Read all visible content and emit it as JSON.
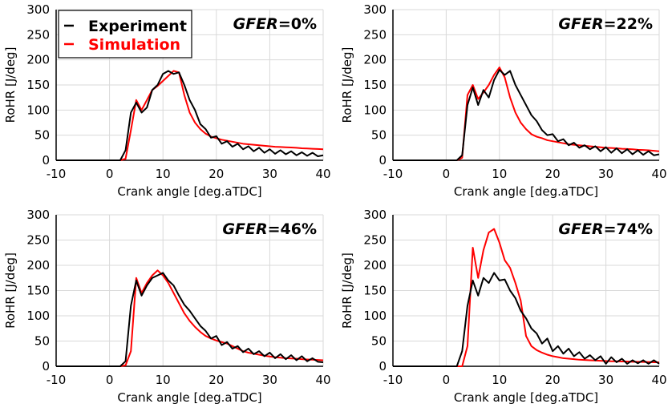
{
  "legend": {
    "items": [
      {
        "label": "Experiment",
        "color": "#000000"
      },
      {
        "label": "Simulation",
        "color": "#ff0000"
      }
    ],
    "placement": "top-left of first panel"
  },
  "chart_data": [
    {
      "type": "line",
      "annotation_var": "GFER",
      "annotation_value": "=0%",
      "xlabel": "Crank angle [deg.aTDC]",
      "ylabel": "RoHR [J/deg]",
      "xlim": [
        -10,
        40
      ],
      "ylim": [
        0,
        300
      ],
      "grid": true,
      "xticks": [
        "-10",
        "0",
        "10",
        "20",
        "30",
        "40"
      ],
      "yticks": [
        "0",
        "50",
        "100",
        "150",
        "200",
        "250",
        "300"
      ],
      "x": [
        -10,
        2,
        3,
        4,
        5,
        6,
        7,
        8,
        9,
        10,
        11,
        12,
        13,
        14,
        15,
        16,
        17,
        18,
        19,
        20,
        21,
        22,
        23,
        24,
        25,
        26,
        27,
        28,
        29,
        30,
        31,
        32,
        33,
        34,
        35,
        36,
        37,
        38,
        39,
        40
      ],
      "series": [
        {
          "name": "Experiment",
          "values": [
            0,
            0,
            20,
            95,
            115,
            95,
            105,
            140,
            150,
            172,
            178,
            172,
            175,
            150,
            120,
            100,
            72,
            62,
            45,
            48,
            33,
            38,
            27,
            33,
            22,
            28,
            18,
            25,
            15,
            22,
            13,
            20,
            12,
            18,
            10,
            16,
            9,
            15,
            8,
            10
          ]
        },
        {
          "name": "Simulation",
          "values": [
            0,
            0,
            3,
            60,
            120,
            100,
            120,
            140,
            148,
            158,
            168,
            178,
            175,
            130,
            95,
            75,
            62,
            53,
            47,
            44,
            41,
            39,
            37,
            35,
            33,
            32,
            31,
            30,
            29,
            28,
            27,
            26.5,
            26,
            25.5,
            25,
            24,
            23.5,
            23,
            22.5,
            22
          ]
        }
      ]
    },
    {
      "type": "line",
      "annotation_var": "GFER",
      "annotation_value": "=22%",
      "xlabel": "Crank angle [deg.aTDC]",
      "ylabel": "RoHR [J/deg]",
      "xlim": [
        -10,
        40
      ],
      "ylim": [
        0,
        300
      ],
      "grid": true,
      "xticks": [
        "-10",
        "0",
        "10",
        "20",
        "30",
        "40"
      ],
      "yticks": [
        "0",
        "50",
        "100",
        "150",
        "200",
        "250",
        "300"
      ],
      "x": [
        -10,
        2,
        3,
        4,
        5,
        6,
        7,
        8,
        9,
        10,
        11,
        12,
        13,
        14,
        15,
        16,
        17,
        18,
        19,
        20,
        21,
        22,
        23,
        24,
        25,
        26,
        27,
        28,
        29,
        30,
        31,
        32,
        33,
        34,
        35,
        36,
        37,
        38,
        39,
        40
      ],
      "series": [
        {
          "name": "Experiment",
          "values": [
            0,
            0,
            10,
            110,
            145,
            110,
            140,
            125,
            160,
            180,
            170,
            178,
            150,
            130,
            110,
            90,
            78,
            60,
            50,
            52,
            38,
            42,
            30,
            35,
            25,
            30,
            22,
            28,
            18,
            26,
            15,
            24,
            14,
            22,
            12,
            20,
            11,
            18,
            10,
            12
          ]
        },
        {
          "name": "Simulation",
          "values": [
            0,
            0,
            5,
            130,
            150,
            122,
            135,
            150,
            170,
            185,
            165,
            125,
            95,
            75,
            62,
            52,
            47,
            44,
            40,
            38,
            36,
            34,
            32,
            31,
            30,
            29,
            28,
            27,
            26,
            25,
            24.5,
            24,
            23,
            22.5,
            22,
            21,
            20.5,
            20,
            19,
            18
          ]
        }
      ]
    },
    {
      "type": "line",
      "annotation_var": "GFER",
      "annotation_value": "=46%",
      "xlabel": "Crank angle [deg.aTDC]",
      "ylabel": "RoHR [J/deg]",
      "xlim": [
        -10,
        40
      ],
      "ylim": [
        0,
        300
      ],
      "grid": true,
      "xticks": [
        "-10",
        "0",
        "10",
        "20",
        "30",
        "40"
      ],
      "yticks": [
        "0",
        "50",
        "100",
        "150",
        "200",
        "250",
        "300"
      ],
      "x": [
        -10,
        2,
        3,
        4,
        5,
        6,
        7,
        8,
        9,
        10,
        11,
        12,
        13,
        14,
        15,
        16,
        17,
        18,
        19,
        20,
        21,
        22,
        23,
        24,
        25,
        26,
        27,
        28,
        29,
        30,
        31,
        32,
        33,
        34,
        35,
        36,
        37,
        38,
        39,
        40
      ],
      "series": [
        {
          "name": "Experiment",
          "values": [
            0,
            0,
            10,
            120,
            170,
            140,
            160,
            175,
            180,
            185,
            170,
            160,
            140,
            122,
            110,
            95,
            80,
            70,
            55,
            60,
            42,
            48,
            35,
            40,
            28,
            35,
            24,
            30,
            20,
            27,
            16,
            24,
            14,
            22,
            12,
            20,
            10,
            16,
            9,
            8
          ]
        },
        {
          "name": "Simulation",
          "values": [
            0,
            0,
            2,
            30,
            175,
            145,
            165,
            180,
            190,
            180,
            165,
            145,
            125,
            105,
            90,
            78,
            68,
            60,
            55,
            51,
            48,
            45,
            40,
            35,
            30,
            27,
            25,
            23,
            21,
            19.5,
            18,
            17,
            16,
            15.5,
            15,
            14,
            13.5,
            13,
            12.5,
            12
          ]
        }
      ]
    },
    {
      "type": "line",
      "annotation_var": "GFER",
      "annotation_value": "=74%",
      "xlabel": "Crank angle [deg.aTDC]",
      "ylabel": "RoHR [J/deg]",
      "xlim": [
        -10,
        40
      ],
      "ylim": [
        0,
        300
      ],
      "grid": true,
      "xticks": [
        "-10",
        "0",
        "10",
        "20",
        "30",
        "40"
      ],
      "yticks": [
        "0",
        "50",
        "100",
        "150",
        "200",
        "250",
        "300"
      ],
      "x": [
        -10,
        2,
        3,
        4,
        5,
        6,
        7,
        8,
        9,
        10,
        11,
        12,
        13,
        14,
        15,
        16,
        17,
        18,
        19,
        20,
        21,
        22,
        23,
        24,
        25,
        26,
        27,
        28,
        29,
        30,
        31,
        32,
        33,
        34,
        35,
        36,
        37,
        38,
        39,
        40
      ],
      "series": [
        {
          "name": "Experiment",
          "values": [
            0,
            0,
            30,
            120,
            170,
            140,
            175,
            165,
            185,
            170,
            172,
            150,
            135,
            110,
            95,
            75,
            65,
            45,
            55,
            30,
            40,
            25,
            35,
            20,
            28,
            15,
            22,
            12,
            20,
            5,
            18,
            8,
            15,
            5,
            12,
            6,
            12,
            5,
            12,
            5
          ]
        },
        {
          "name": "Simulation",
          "values": [
            0,
            0,
            0,
            40,
            235,
            175,
            230,
            265,
            272,
            245,
            210,
            195,
            165,
            130,
            60,
            40,
            32,
            27,
            23,
            20,
            18,
            16,
            15,
            14,
            13,
            12.5,
            12,
            11.5,
            11,
            10.5,
            10,
            10,
            9.5,
            9.5,
            9,
            9,
            8.5,
            8.5,
            8,
            8
          ]
        }
      ]
    }
  ]
}
